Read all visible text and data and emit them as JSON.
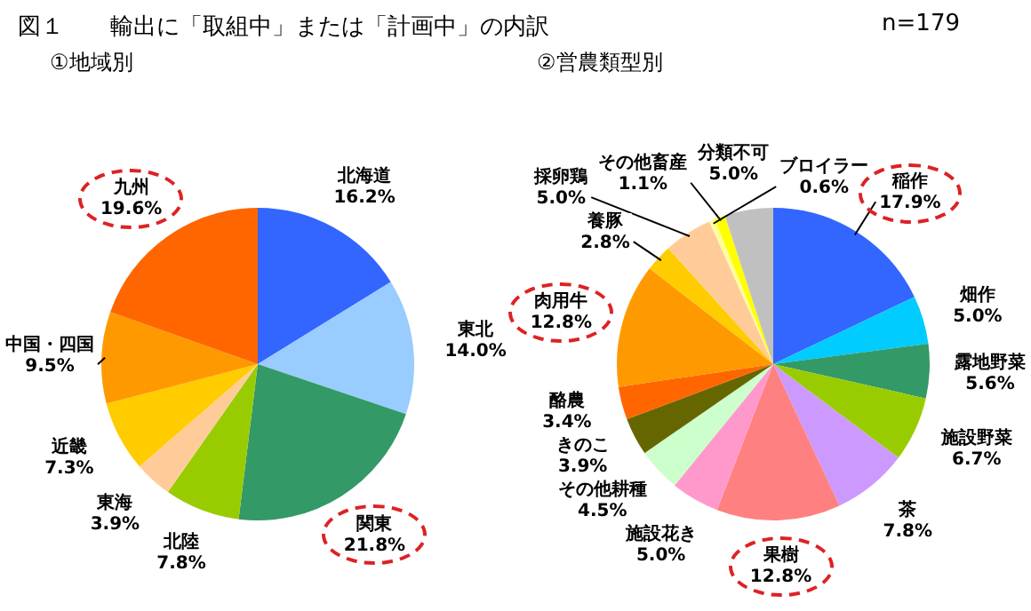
{
  "chart_data": [
    {
      "type": "pie",
      "title": "図１　　輸出に「取組中」または「計画中」の内訳",
      "subtitle": "①地域別",
      "categories": [
        "北海道",
        "東北",
        "関東",
        "北陸",
        "東海",
        "近畿",
        "中国・四国",
        "九州"
      ],
      "values": [
        16.2,
        14.0,
        21.8,
        7.8,
        3.9,
        7.3,
        9.5,
        19.6
      ],
      "value_labels": [
        "16.2%",
        "14.0%",
        "21.8%",
        "7.8%",
        "3.9%",
        "7.3%",
        "9.5%",
        "19.6%"
      ],
      "colors": [
        "#3366ff",
        "#99ccff",
        "#339966",
        "#99cc00",
        "#ffcc99",
        "#ffcc00",
        "#ff9900",
        "#ff6600"
      ],
      "legend": false
    },
    {
      "type": "pie",
      "title": "②営農類型別",
      "annotations": [
        "n=179"
      ],
      "categories": [
        "稲作",
        "畑作",
        "露地野菜",
        "施設野菜",
        "茶",
        "果樹",
        "施設花き",
        "その他耕種",
        "きのこ",
        "酪農",
        "肉用牛",
        "養豚",
        "採卵鶏",
        "ブロイラー",
        "その他畜産",
        "分類不可"
      ],
      "values": [
        17.9,
        5.0,
        5.6,
        6.7,
        7.8,
        12.8,
        5.0,
        4.5,
        3.9,
        3.4,
        12.8,
        2.8,
        5.0,
        0.6,
        1.1,
        5.0
      ],
      "value_labels": [
        "17.9%",
        "5.0%",
        "5.6%",
        "6.7%",
        "7.8%",
        "12.8%",
        "5.0%",
        "4.5%",
        "3.9%",
        "3.4%",
        "12.8%",
        "2.8%",
        "5.0%",
        "0.6%",
        "1.1%",
        "5.0%"
      ],
      "colors": [
        "#3366ff",
        "#00ccff",
        "#339966",
        "#99cc00",
        "#cc99ff",
        "#ff8080",
        "#ff99cc",
        "#ccffcc",
        "#666600",
        "#ff6600",
        "#ff9900",
        "#ffcc00",
        "#ffcc99",
        "#ffff99",
        "#ffff00",
        "#c0c0c0"
      ],
      "legend": false
    }
  ]
}
